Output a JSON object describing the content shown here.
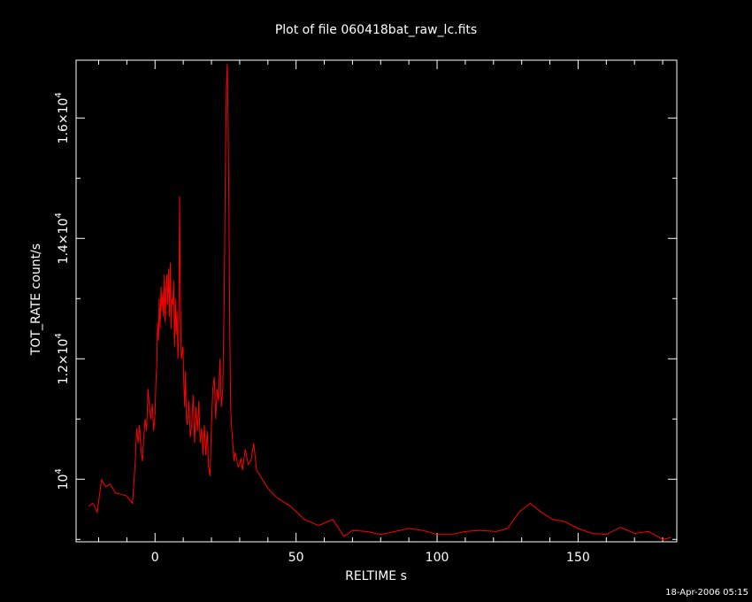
{
  "chart_data": {
    "type": "line",
    "title": "Plot of file 060418bat_raw_lc.fits",
    "xlabel": "RELTIME  s",
    "ylabel": "TOT_RATE  count/s",
    "xlim": [
      -28,
      185
    ],
    "ylim": [
      8960,
      16960
    ],
    "x_ticks": [
      0,
      50,
      100,
      150
    ],
    "x_tick_labels": [
      "0",
      "50",
      "100",
      "150"
    ],
    "y_ticks": [
      10000,
      12000,
      14000,
      16000
    ],
    "y_tick_labels": [
      {
        "mant": "10",
        "exp": "4"
      },
      {
        "mant": "1.2×10",
        "exp": "4"
      },
      {
        "mant": "1.4×10",
        "exp": "4"
      },
      {
        "mant": "1.6×10",
        "exp": "4"
      }
    ],
    "series": [
      {
        "color": "#ff0000",
        "x": [
          -23.5,
          -22,
          -20.5,
          -19,
          -17.5,
          -16,
          -15,
          -14,
          -12,
          -10,
          -8,
          -7,
          -6.5,
          -6,
          -5.5,
          -5,
          -4.5,
          -4,
          -3.5,
          -3,
          -2.5,
          -2,
          -1.5,
          -1,
          -0.5,
          0,
          0.3,
          0.6,
          0.9,
          1.2,
          1.5,
          1.8,
          2.1,
          2.4,
          2.7,
          3,
          3.3,
          3.6,
          3.9,
          4.2,
          4.5,
          4.8,
          5.1,
          5.4,
          5.7,
          6,
          6.3,
          6.6,
          6.9,
          7.2,
          7.5,
          7.8,
          8.1,
          8.4,
          8.7,
          9,
          9.3,
          9.6,
          9.9,
          10.2,
          10.5,
          10.8,
          11.1,
          11.5,
          12,
          12.5,
          13,
          13.5,
          14,
          14.5,
          15,
          15.5,
          16,
          16.5,
          17,
          17.5,
          18,
          18.5,
          19,
          19.5,
          20,
          20.5,
          21,
          21.5,
          22,
          22.5,
          23,
          23.5,
          24,
          24.5,
          25,
          25.3,
          25.6,
          25.9,
          26.2,
          26.5,
          26.8,
          27.1,
          27.4,
          27.7,
          28,
          28.3,
          28.6,
          28.9,
          29.2,
          29.5,
          30,
          30.5,
          31,
          32,
          33,
          34,
          35,
          36,
          38,
          40,
          43,
          48,
          53,
          58,
          63,
          67,
          70,
          75,
          80,
          85,
          90,
          95,
          100,
          105,
          110,
          115,
          121,
          125,
          129,
          133,
          137,
          141,
          145,
          150,
          155,
          160,
          165,
          170,
          175,
          180,
          183
        ],
        "y": [
          9550,
          9600,
          9450,
          9990,
          9870,
          9920,
          9850,
          9770,
          9750,
          9720,
          9600,
          10300,
          10850,
          10600,
          10900,
          10500,
          10300,
          10700,
          11000,
          10800,
          11500,
          11200,
          11000,
          11250,
          10800,
          11100,
          11600,
          11900,
          12600,
          12300,
          13000,
          12500,
          13200,
          12800,
          13100,
          12700,
          13400,
          12600,
          13200,
          13400,
          12900,
          13500,
          12700,
          13600,
          12500,
          13000,
          12900,
          13300,
          12200,
          13000,
          12400,
          12800,
          12000,
          12300,
          14700,
          13000,
          12000,
          12100,
          12200,
          11600,
          11200,
          11800,
          11000,
          10900,
          11300,
          10700,
          10900,
          11400,
          10600,
          11200,
          10800,
          11300,
          10600,
          10850,
          10400,
          10900,
          10400,
          10800,
          10200,
          10050,
          10900,
          11500,
          11700,
          11000,
          11500,
          11300,
          12000,
          11200,
          11500,
          13000,
          15500,
          16500,
          16900,
          16000,
          14500,
          12500,
          11200,
          10900,
          10700,
          10500,
          10300,
          10450,
          10400,
          10350,
          10250,
          10200,
          10250,
          10350,
          10150,
          10500,
          10250,
          10300,
          10600,
          10150,
          10000,
          9850,
          9700,
          9550,
          9330,
          9230,
          9330,
          9050,
          9150,
          9130,
          9080,
          9130,
          9180,
          9150,
          9080,
          9080,
          9130,
          9150,
          9130,
          9180,
          9450,
          9600,
          9450,
          9330,
          9300,
          9180,
          9100,
          9080,
          9200,
          9100,
          9130,
          9000,
          9030
        ]
      }
    ],
    "grid": false,
    "legend": "none"
  },
  "footer": {
    "timestamp": "18-Apr-2006 05:15"
  }
}
